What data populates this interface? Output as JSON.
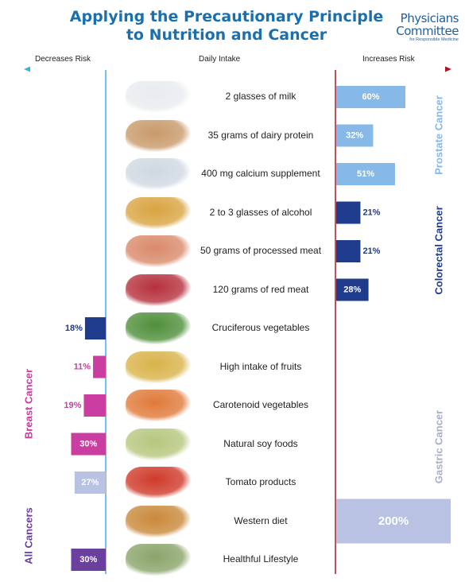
{
  "header": {
    "title_line1": "Applying the Precautionary Principle",
    "title_line2": "to Nutrition and Cancer",
    "logo_line1": "Physicians",
    "logo_line2": "Committee",
    "logo_line3": "for Responsible Medicine"
  },
  "columns": {
    "left": "Decreases Risk",
    "middle": "Daily Intake",
    "right": "Increases Risk"
  },
  "cancer_labels": {
    "prostate": "Prostate Cancer",
    "colorectal": "Colorectal Cancer",
    "breast": "Breast Cancer",
    "gastric": "Gastric Cancer",
    "all": "All Cancers"
  },
  "colors": {
    "title": "#1a6fae",
    "prostate": "#86b8e8",
    "colorectal": "#1f3c8c",
    "breast": "#c93ea0",
    "gastric": "#b9c2e2",
    "all_cancers": "#6a3f9e",
    "decrease_axis": "#3fb2e0",
    "increase_axis": "#a61a2a"
  },
  "chart_data": {
    "type": "bar",
    "title": "Applying the Precautionary Principle to Nutrition and Cancer",
    "xlabel_left": "Decreases Risk",
    "xlabel_middle": "Daily Intake",
    "xlabel_right": "Increases Risk",
    "unit": "%",
    "categories": [
      "2 glasses of milk",
      "35 grams of dairy protein",
      "400 mg calcium supplement",
      "2 to 3 glasses of alcohol",
      "50 grams of processed meat",
      "120 grams of red meat",
      "Cruciferous vegetables",
      "High intake of fruits",
      "Carotenoid vegetables",
      "Natural soy foods",
      "Tomato products",
      "Western diet",
      "Healthful Lifestyle"
    ],
    "series": [
      {
        "name": "Prostate Cancer",
        "direction": "increase",
        "color": "#86b8e8",
        "values": [
          60,
          32,
          51,
          null,
          null,
          null,
          null,
          null,
          null,
          null,
          null,
          null,
          null
        ]
      },
      {
        "name": "Colorectal Cancer",
        "direction": "increase",
        "color": "#1f3c8c",
        "values": [
          null,
          null,
          null,
          21,
          21,
          28,
          null,
          null,
          null,
          null,
          null,
          null,
          null
        ]
      },
      {
        "name": "Colorectal Cancer",
        "direction": "decrease",
        "color": "#1f3c8c",
        "values": [
          null,
          null,
          null,
          null,
          null,
          null,
          18,
          null,
          null,
          null,
          null,
          null,
          null
        ]
      },
      {
        "name": "Breast Cancer",
        "direction": "decrease",
        "color": "#c93ea0",
        "values": [
          null,
          null,
          null,
          null,
          null,
          null,
          null,
          11,
          19,
          30,
          null,
          null,
          null
        ]
      },
      {
        "name": "Gastric Cancer",
        "direction": "decrease",
        "color": "#b9c2e2",
        "values": [
          null,
          null,
          null,
          null,
          null,
          null,
          null,
          null,
          null,
          null,
          27,
          null,
          null
        ]
      },
      {
        "name": "Gastric Cancer",
        "direction": "increase",
        "color": "#b9c2e2",
        "values": [
          null,
          null,
          null,
          null,
          null,
          null,
          null,
          null,
          null,
          null,
          null,
          200,
          null
        ]
      },
      {
        "name": "All Cancers",
        "direction": "decrease",
        "color": "#6a3f9e",
        "values": [
          null,
          null,
          null,
          null,
          null,
          null,
          null,
          null,
          null,
          null,
          null,
          null,
          30
        ]
      }
    ]
  }
}
